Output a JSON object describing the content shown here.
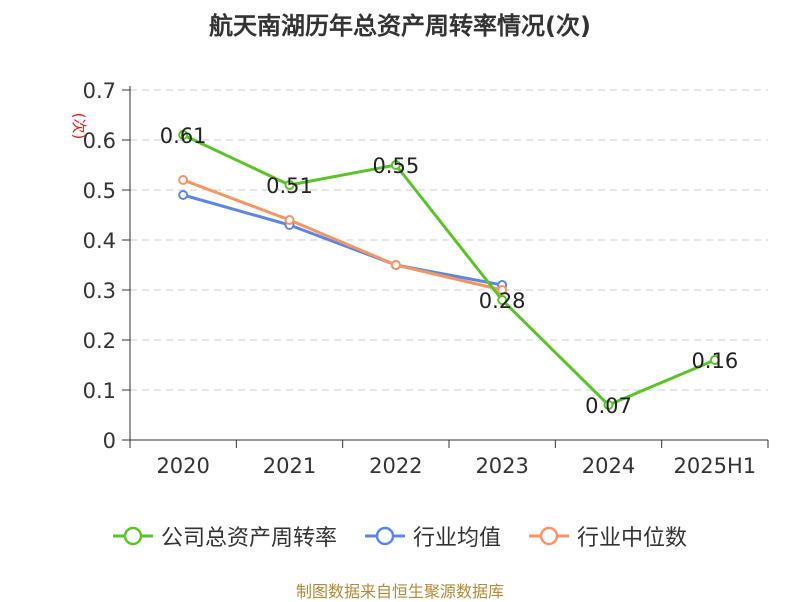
{
  "title": "航天南湖历年总资产周转率情况(次)",
  "source": "制图数据来自恒生聚源数据库",
  "colors": {
    "company": "#5cc22a",
    "industry_avg": "#5b86e5",
    "industry_median": "#f59564",
    "axis": "#333333",
    "grid": "#cccccc",
    "ylabel": "#e02020"
  },
  "legend": [
    {
      "label": "公司总资产周转率",
      "color": "#5cc22a"
    },
    {
      "label": "行业均值",
      "color": "#5b86e5"
    },
    {
      "label": "行业中位数",
      "color": "#f59564"
    }
  ],
  "chart_data": {
    "type": "line",
    "title": "航天南湖历年总资产周转率情况(次)",
    "xlabel": "",
    "ylabel": "(次)",
    "categories": [
      "2020",
      "2021",
      "2022",
      "2023",
      "2024",
      "2025H1"
    ],
    "ylim": [
      0,
      0.7
    ],
    "yticks": [
      0,
      0.1,
      0.2,
      0.3,
      0.4,
      0.5,
      0.6,
      0.7
    ],
    "ytick_labels": [
      "0",
      "0.1",
      "0.2",
      "0.3",
      "0.4",
      "0.5",
      "0.6",
      "0.7"
    ],
    "grid": true,
    "legend_position": "bottom",
    "series": [
      {
        "name": "公司总资产周转率",
        "color": "#5cc22a",
        "values": [
          0.61,
          0.51,
          0.55,
          0.28,
          0.07,
          0.16
        ],
        "labels": [
          "0.61",
          "0.51",
          "0.55",
          "0.28",
          "0.07",
          "0.16"
        ],
        "show_labels": true
      },
      {
        "name": "行业均值",
        "color": "#5b86e5",
        "values": [
          0.49,
          0.43,
          0.35,
          0.31,
          null,
          null
        ],
        "show_labels": false
      },
      {
        "name": "行业中位数",
        "color": "#f59564",
        "values": [
          0.52,
          0.44,
          0.35,
          0.3,
          null,
          null
        ],
        "show_labels": false
      }
    ]
  }
}
